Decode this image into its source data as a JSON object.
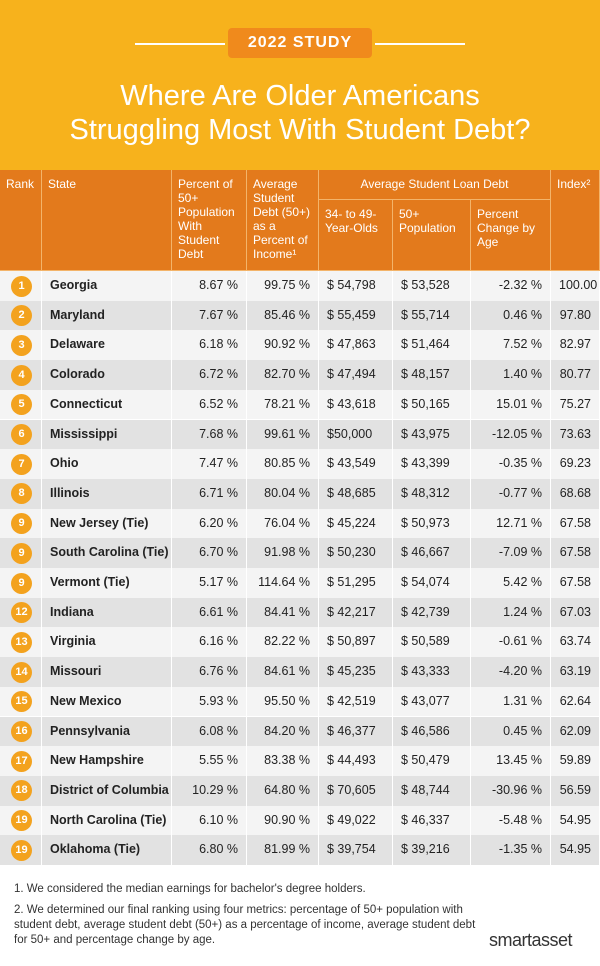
{
  "header": {
    "badge": "2022 STUDY",
    "title_lines": [
      "Where Are Older Americans",
      "Struggling Most With Student Debt?"
    ]
  },
  "table": {
    "columns": [
      "Rank",
      "State",
      "Percent of 50+ Population With Student Debt",
      "Average Student Debt (50+) as a Percent of Income¹",
      "34- to 49-Year-Olds",
      "50+ Population",
      "Percent Change by Age",
      "Index²"
    ],
    "group_header": "Average Student Loan Debt",
    "rows": [
      [
        "1",
        "Georgia",
        "8.67 %",
        "99.75 %",
        "$ 54,798",
        "$ 53,528",
        "-2.32 %",
        "100.00"
      ],
      [
        "2",
        "Maryland",
        "7.67 %",
        "85.46 %",
        "$ 55,459",
        "$ 55,714",
        "0.46 %",
        "97.80"
      ],
      [
        "3",
        "Delaware",
        "6.18 %",
        "90.92 %",
        "$ 47,863",
        "$ 51,464",
        "7.52 %",
        "82.97"
      ],
      [
        "4",
        "Colorado",
        "6.72 %",
        "82.70 %",
        "$ 47,494",
        "$ 48,157",
        "1.40 %",
        "80.77"
      ],
      [
        "5",
        "Connecticut",
        "6.52 %",
        "78.21 %",
        "$ 43,618",
        "$ 50,165",
        "15.01 %",
        "75.27"
      ],
      [
        "6",
        "Mississippi",
        "7.68 %",
        "99.61 %",
        "$50,000",
        "$ 43,975",
        "-12.05 %",
        "73.63"
      ],
      [
        "7",
        "Ohio",
        "7.47 %",
        "80.85 %",
        "$ 43,549",
        "$ 43,399",
        "-0.35 %",
        "69.23"
      ],
      [
        "8",
        "Illinois",
        "6.71 %",
        "80.04 %",
        "$ 48,685",
        "$ 48,312",
        "-0.77 %",
        "68.68"
      ],
      [
        "9",
        "New Jersey (Tie)",
        "6.20 %",
        "76.04 %",
        "$ 45,224",
        "$ 50,973",
        "12.71 %",
        "67.58"
      ],
      [
        "9",
        "South Carolina (Tie)",
        "6.70 %",
        "91.98 %",
        "$ 50,230",
        "$ 46,667",
        "-7.09 %",
        "67.58"
      ],
      [
        "9",
        "Vermont (Tie)",
        "5.17 %",
        "114.64 %",
        "$ 51,295",
        "$ 54,074",
        "5.42 %",
        "67.58"
      ],
      [
        "12",
        "Indiana",
        "6.61 %",
        "84.41 %",
        "$ 42,217",
        "$ 42,739",
        "1.24 %",
        "67.03"
      ],
      [
        "13",
        "Virginia",
        "6.16 %",
        "82.22 %",
        "$ 50,897",
        "$ 50,589",
        "-0.61 %",
        "63.74"
      ],
      [
        "14",
        "Missouri",
        "6.76 %",
        "84.61 %",
        "$ 45,235",
        "$ 43,333",
        "-4.20 %",
        "63.19"
      ],
      [
        "15",
        "New Mexico",
        "5.93 %",
        "95.50 %",
        "$ 42,519",
        "$ 43,077",
        "1.31 %",
        "62.64"
      ],
      [
        "16",
        "Pennsylvania",
        "6.08 %",
        "84.20 %",
        "$ 46,377",
        "$ 46,586",
        "0.45 %",
        "62.09"
      ],
      [
        "17",
        "New Hampshire",
        "5.55 %",
        "83.38 %",
        "$ 44,493",
        "$ 50,479",
        "13.45 %",
        "59.89"
      ],
      [
        "18",
        "District of Columbia",
        "10.29 %",
        "64.80 %",
        "$ 70,605",
        "$ 48,744",
        "-30.96 %",
        "56.59"
      ],
      [
        "19",
        "North Carolina (Tie)",
        "6.10 %",
        "90.90 %",
        "$ 49,022",
        "$ 46,337",
        "-5.48 %",
        "54.95"
      ],
      [
        "19",
        "Oklahoma (Tie)",
        "6.80 %",
        "81.99 %",
        "$ 39,754",
        "$ 39,216",
        "-1.35 %",
        "54.95"
      ]
    ]
  },
  "footnotes": [
    "1. We considered the median earnings for bachelor's degree holders.",
    "2. We determined our final ranking using four metrics: percentage of 50+ population with student debt, average student debt (50+) as a percentage of income, average student debt for 50+ and percentage change by age."
  ],
  "logo": "smartasset"
}
